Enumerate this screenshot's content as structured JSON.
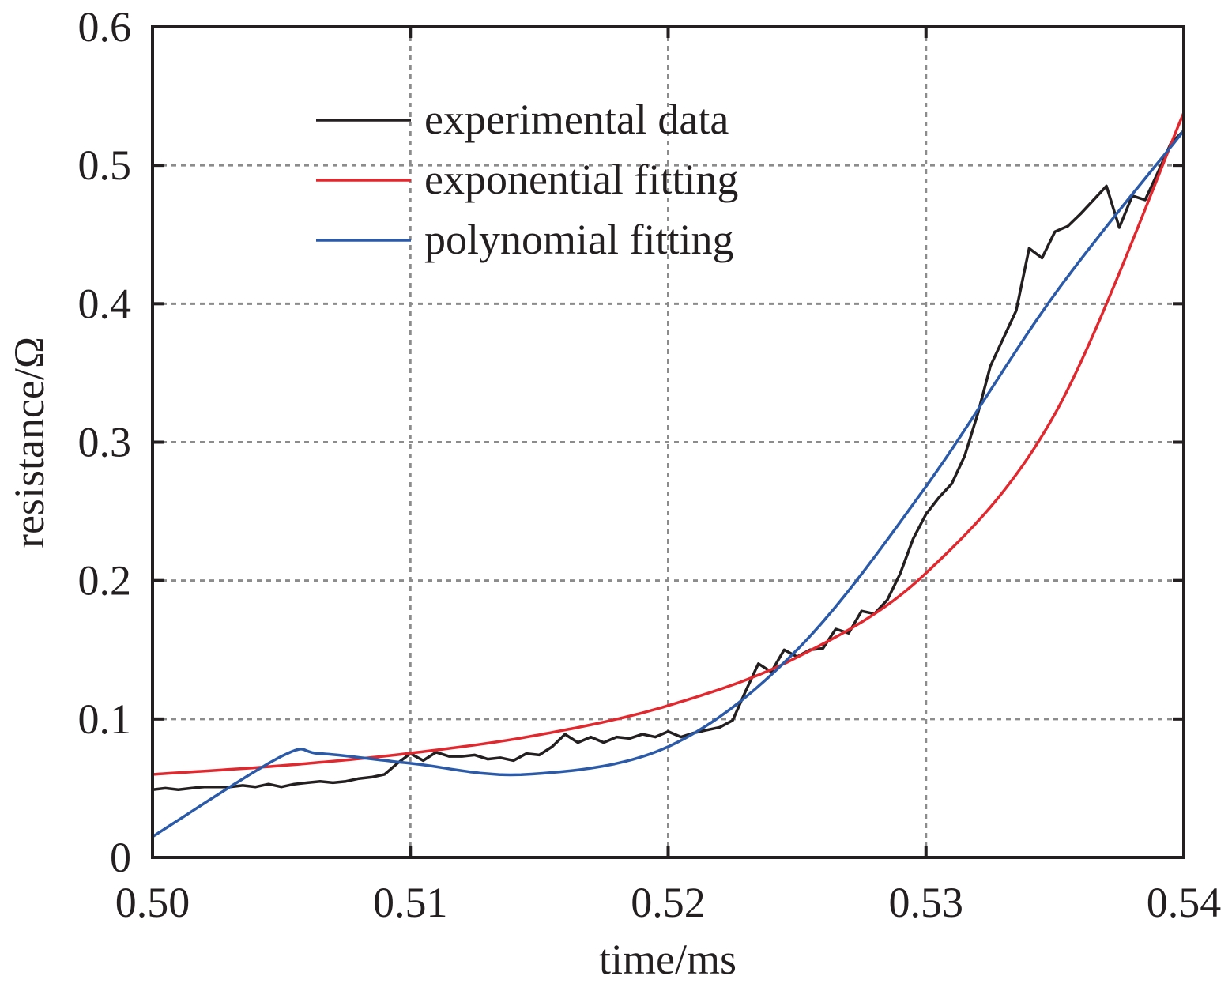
{
  "chart_data": {
    "type": "line",
    "title": "",
    "xlabel": "time/ms",
    "ylabel": "resistance/Ω",
    "xlim": [
      0.5,
      0.54
    ],
    "ylim": [
      0,
      0.6
    ],
    "x_ticks": [
      "0.50",
      "0.51",
      "0.52",
      "0.53",
      "0.54"
    ],
    "x_tick_values": [
      0.5,
      0.51,
      0.52,
      0.53,
      0.54
    ],
    "y_ticks": [
      "0",
      "0.1",
      "0.2",
      "0.3",
      "0.4",
      "0.5",
      "0.6"
    ],
    "y_tick_values": [
      0,
      0.1,
      0.2,
      0.3,
      0.4,
      0.5,
      0.6
    ],
    "grid": true,
    "legend_position": "top-center",
    "series": [
      {
        "name": "experimental data",
        "color": "#231f20",
        "points": [
          [
            0.5,
            0.049
          ],
          [
            0.5005,
            0.05
          ],
          [
            0.501,
            0.049
          ],
          [
            0.5015,
            0.05
          ],
          [
            0.502,
            0.051
          ],
          [
            0.5025,
            0.051
          ],
          [
            0.503,
            0.051
          ],
          [
            0.5035,
            0.052
          ],
          [
            0.504,
            0.051
          ],
          [
            0.5045,
            0.053
          ],
          [
            0.505,
            0.051
          ],
          [
            0.5055,
            0.053
          ],
          [
            0.506,
            0.054
          ],
          [
            0.5065,
            0.055
          ],
          [
            0.507,
            0.054
          ],
          [
            0.5075,
            0.055
          ],
          [
            0.508,
            0.057
          ],
          [
            0.5085,
            0.058
          ],
          [
            0.509,
            0.06
          ],
          [
            0.5095,
            0.068
          ],
          [
            0.51,
            0.075
          ],
          [
            0.5105,
            0.07
          ],
          [
            0.511,
            0.076
          ],
          [
            0.5115,
            0.073
          ],
          [
            0.512,
            0.073
          ],
          [
            0.5125,
            0.074
          ],
          [
            0.513,
            0.071
          ],
          [
            0.5135,
            0.072
          ],
          [
            0.514,
            0.07
          ],
          [
            0.5145,
            0.075
          ],
          [
            0.515,
            0.074
          ],
          [
            0.5155,
            0.08
          ],
          [
            0.516,
            0.089
          ],
          [
            0.5165,
            0.083
          ],
          [
            0.517,
            0.087
          ],
          [
            0.5175,
            0.083
          ],
          [
            0.518,
            0.087
          ],
          [
            0.5185,
            0.086
          ],
          [
            0.519,
            0.089
          ],
          [
            0.5195,
            0.087
          ],
          [
            0.52,
            0.091
          ],
          [
            0.5205,
            0.087
          ],
          [
            0.521,
            0.09
          ],
          [
            0.5215,
            0.092
          ],
          [
            0.522,
            0.094
          ],
          [
            0.5225,
            0.099
          ],
          [
            0.523,
            0.12
          ],
          [
            0.5235,
            0.14
          ],
          [
            0.524,
            0.134
          ],
          [
            0.5245,
            0.15
          ],
          [
            0.525,
            0.145
          ],
          [
            0.5255,
            0.15
          ],
          [
            0.526,
            0.151
          ],
          [
            0.5265,
            0.165
          ],
          [
            0.527,
            0.162
          ],
          [
            0.5275,
            0.178
          ],
          [
            0.528,
            0.176
          ],
          [
            0.5285,
            0.186
          ],
          [
            0.529,
            0.205
          ],
          [
            0.5295,
            0.23
          ],
          [
            0.53,
            0.248
          ],
          [
            0.5305,
            0.26
          ],
          [
            0.531,
            0.27
          ],
          [
            0.5315,
            0.29
          ],
          [
            0.532,
            0.32
          ],
          [
            0.5325,
            0.355
          ],
          [
            0.533,
            0.375
          ],
          [
            0.5335,
            0.395
          ],
          [
            0.534,
            0.44
          ],
          [
            0.5345,
            0.433
          ],
          [
            0.535,
            0.452
          ],
          [
            0.5355,
            0.456
          ],
          [
            0.536,
            0.465
          ],
          [
            0.5365,
            0.475
          ],
          [
            0.537,
            0.485
          ],
          [
            0.5375,
            0.455
          ],
          [
            0.538,
            0.478
          ],
          [
            0.5385,
            0.475
          ],
          [
            0.539,
            0.495
          ],
          [
            0.5395,
            0.516
          ],
          [
            0.54,
            0.525
          ]
        ]
      },
      {
        "name": "exponential fitting",
        "color": "#e0282e",
        "model": "0.06*exp(a*(t-0.50))",
        "points": [
          [
            0.5,
            0.06
          ],
          [
            0.505,
            0.0663
          ],
          [
            0.51,
            0.0753
          ],
          [
            0.515,
            0.0886
          ],
          [
            0.52,
            0.1097
          ],
          [
            0.525,
            0.1446
          ],
          [
            0.53,
            0.2054
          ],
          [
            0.535,
            0.3204
          ],
          [
            0.54,
            0.538
          ]
        ]
      },
      {
        "name": "polynomial fitting",
        "color": "#2b5aa8",
        "model": "cubic",
        "points": [
          [
            0.5,
            0.015
          ],
          [
            0.505,
            0.073
          ],
          [
            0.5065,
            0.075
          ],
          [
            0.51,
            0.068
          ],
          [
            0.5145,
            0.06
          ],
          [
            0.52,
            0.08
          ],
          [
            0.525,
            0.15
          ],
          [
            0.53,
            0.268
          ],
          [
            0.535,
            0.407
          ],
          [
            0.54,
            0.525
          ]
        ]
      }
    ]
  }
}
